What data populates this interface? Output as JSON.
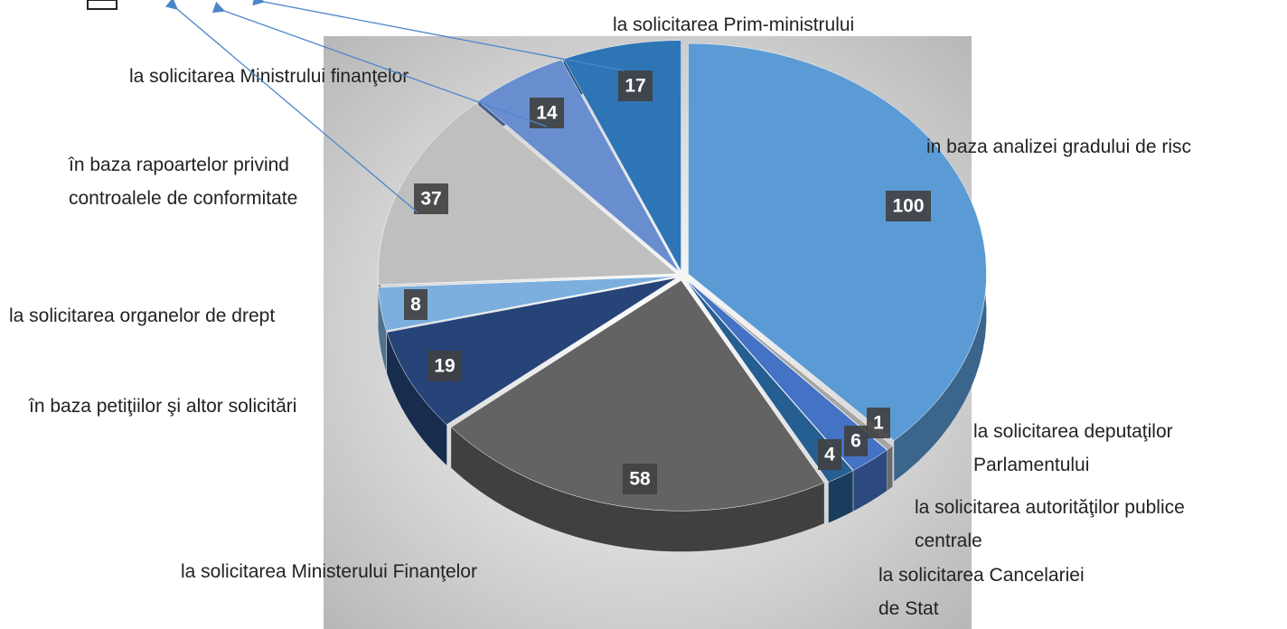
{
  "chart_data": {
    "type": "pie",
    "categories": [
      "in baza analizei gradului de risc",
      "la solicitarea deputaţilor\nParlamentului",
      "la solicitarea autorităţilor publice\ncentrale",
      "la solicitarea Cancelariei\nde Stat",
      "la solicitarea Ministerului Finanţelor",
      "în baza petiţiilor şi altor solicitări",
      "la solicitarea organelor de drept",
      "în baza rapoartelor privind\ncontroalele de conformitate",
      "la solicitarea Ministrului finanţelor",
      "la solicitarea Prim-ministrului"
    ],
    "values": [
      100,
      1,
      6,
      4,
      58,
      19,
      8,
      37,
      14,
      17
    ],
    "colors": [
      "#5b9bd5",
      "#a5a5a5",
      "#4472c4",
      "#255e91",
      "#636363",
      "#264478",
      "#7cafdd",
      "#bfbfbf",
      "#698ed0",
      "#2e75b6"
    ]
  }
}
